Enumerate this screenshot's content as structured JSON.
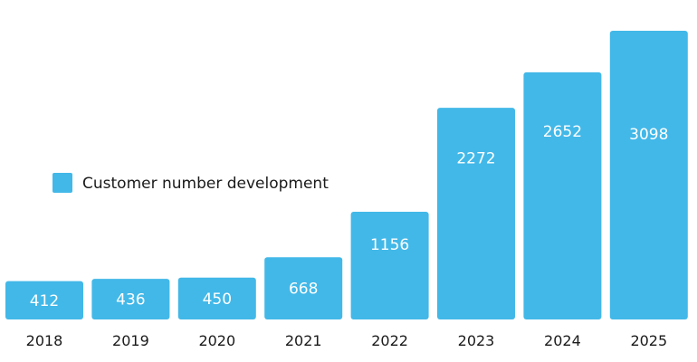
{
  "chart_data": {
    "type": "bar",
    "categories": [
      "2018",
      "2019",
      "2020",
      "2021",
      "2022",
      "2023",
      "2024",
      "2025"
    ],
    "series": [
      {
        "name": "Customer number development",
        "values": [
          412,
          436,
          450,
          668,
          1156,
          2272,
          2652,
          3098
        ],
        "color": "#42b8e8"
      }
    ],
    "xlabel": "",
    "ylabel": "",
    "ylim": [
      0,
      3500
    ],
    "grid": false,
    "legend_position": "left-middle",
    "data_labels": true
  }
}
